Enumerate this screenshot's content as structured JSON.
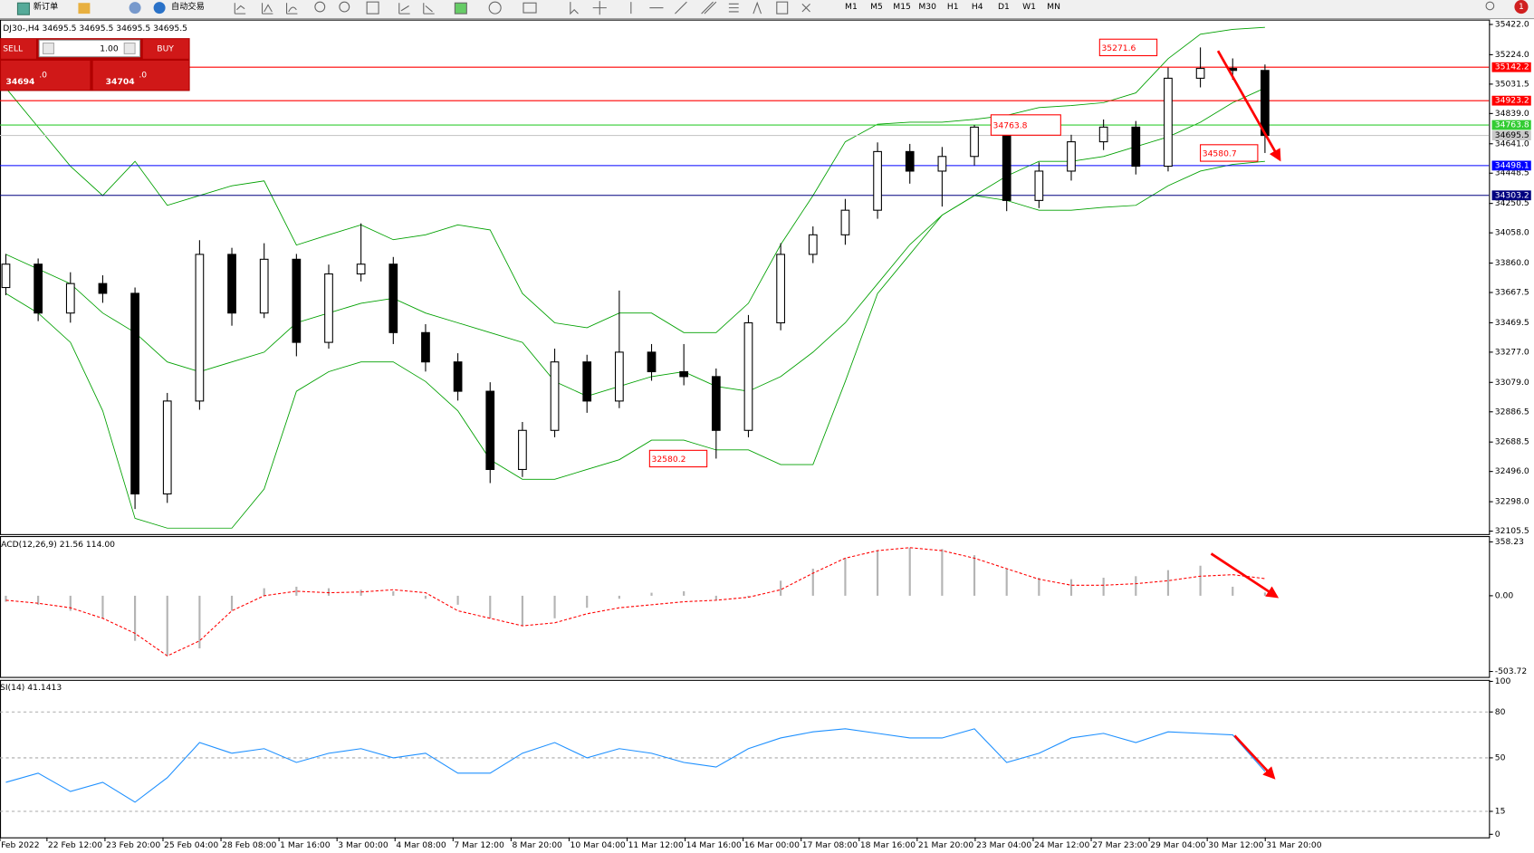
{
  "toolbar": {
    "new_order": "新订单",
    "auto_trading": "自动交易",
    "timeframes": [
      "M1",
      "M5",
      "M15",
      "M30",
      "H1",
      "H4",
      "D1",
      "W1",
      "MN"
    ],
    "badge": "1"
  },
  "trade_panel": {
    "sell": "SELL",
    "buy": "BUY",
    "volume": "1.00",
    "sell_price": "34694",
    "sell_pips": ".0",
    "buy_price": "34704",
    "buy_pips": ".0"
  },
  "chart_data": [
    {
      "type": "candlestick",
      "title": "DJ30-,H4  34695.5 34695.5 34695.5 34695.5",
      "open": [
        33700,
        33853,
        33533,
        33726,
        33662,
        32349,
        32957,
        33917,
        33533,
        33885,
        33341,
        33789,
        33853,
        33405,
        33213,
        33021,
        32509,
        32765,
        33213,
        32957,
        33277,
        33149,
        33117,
        32765,
        33469,
        33917,
        34045,
        34206,
        34590,
        34462,
        34558,
        34750,
        34270,
        34462,
        34654,
        34750,
        34494,
        35070,
        35134,
        35121
      ],
      "high": [
        33920,
        33890,
        33800,
        33780,
        33700,
        33010,
        34010,
        33960,
        33990,
        33920,
        33850,
        34120,
        33900,
        33460,
        33270,
        33080,
        32820,
        33300,
        33260,
        33680,
        33330,
        33330,
        33170,
        33520,
        33990,
        34100,
        34280,
        34650,
        34640,
        34620,
        34763.8,
        34800,
        34520,
        34700,
        34800,
        34790,
        35140,
        35271.6,
        35200,
        35160
      ],
      "low": [
        33650,
        33480,
        33470,
        33600,
        32250,
        32290,
        32900,
        33450,
        33500,
        33250,
        33300,
        33740,
        33330,
        33150,
        32960,
        32420,
        32460,
        32720,
        32880,
        32910,
        33090,
        33060,
        32580.2,
        32720,
        33420,
        33860,
        33980,
        34150,
        34380,
        34230,
        34500,
        34200,
        34220,
        34400,
        34600,
        34440,
        34460,
        35010,
        35060,
        34580.7
      ],
      "close": [
        33853,
        33533,
        33726,
        33662,
        32349,
        32957,
        33917,
        33533,
        33885,
        33341,
        33789,
        33853,
        33405,
        33213,
        33021,
        32509,
        32765,
        33213,
        32957,
        33277,
        33149,
        33117,
        32765,
        33469,
        33917,
        34045,
        34206,
        34590,
        34462,
        34558,
        34750,
        34270,
        34462,
        34654,
        34750,
        34494,
        35070,
        35134,
        35121,
        34695.5
      ],
      "bands": {
        "color": "#00a000",
        "upper": [
          35006,
          34750,
          34494,
          34302,
          34526,
          34238,
          34302,
          34366,
          34398,
          33978,
          34045,
          34110,
          34013,
          34045,
          34110,
          34077,
          33661,
          33469,
          33437,
          33533,
          33533,
          33405,
          33405,
          33597,
          33981,
          34302,
          34654,
          34769,
          34782,
          34782,
          34801,
          34827,
          34878,
          34891,
          34910,
          34974,
          35198,
          35358,
          35390,
          35403
        ],
        "middle": [
          33917,
          33821,
          33725,
          33533,
          33405,
          33213,
          33149,
          33213,
          33277,
          33469,
          33533,
          33597,
          33629,
          33533,
          33469,
          33405,
          33341,
          33085,
          32989,
          33053,
          33117,
          33149,
          33053,
          33021,
          33117,
          33277,
          33469,
          33725,
          33981,
          34174,
          34302,
          34430,
          34526,
          34526,
          34558,
          34622,
          34686,
          34782,
          34910,
          35006
        ],
        "lower": [
          33661,
          33533,
          33341,
          32893,
          32189,
          32125,
          32125,
          32125,
          32381,
          33021,
          33149,
          33213,
          33213,
          33085,
          32893,
          32573,
          32445,
          32445,
          32509,
          32573,
          32701,
          32701,
          32637,
          32637,
          32541,
          32541,
          33085,
          33661,
          33917,
          34174,
          34302,
          34270,
          34206,
          34206,
          34225,
          34238,
          34366,
          34462,
          34506,
          34526
        ]
      },
      "levels": [
        {
          "value": 35142.2,
          "color": "#ff0000"
        },
        {
          "value": 34923.2,
          "color": "#ff0000"
        },
        {
          "value": 34763.8,
          "color": "#33cc33"
        },
        {
          "value": 34695.5,
          "color": "#c8c8c8"
        },
        {
          "value": 34498.1,
          "color": "#0000ff"
        },
        {
          "value": 34303.2,
          "color": "#000080"
        }
      ],
      "annotations": [
        35271.6,
        34763.8,
        34580.7,
        32580.2
      ],
      "ylim": [
        32086,
        35454
      ],
      "yticks": [
        {
          "value": 35422,
          "label": "35422.0"
        },
        {
          "value": 35224,
          "label": "35224.0"
        },
        35031.5,
        {
          "value": 34839,
          "label": "34839.0"
        },
        {
          "value": 34641,
          "label": "34641.0"
        },
        34448.5,
        34250.5,
        {
          "value": 34058,
          "label": "34058.0"
        },
        {
          "value": 33860,
          "label": "33860.0"
        },
        33667.5,
        33469.5,
        {
          "value": 33277,
          "label": "33277.0"
        },
        {
          "value": 33079,
          "label": "33079.0"
        },
        32886.5,
        32688.5,
        {
          "value": 32496,
          "label": "32496.0"
        },
        {
          "value": 32298,
          "label": "32298.0"
        },
        32105.5
      ],
      "x_tick_labels": [
        "Feb 2022",
        "22 Feb 12:00",
        "23 Feb 20:00",
        "25 Feb 04:00",
        "28 Feb 08:00",
        "1 Mar 16:00",
        "3 Mar 00:00",
        "4 Mar 08:00",
        "7 Mar 12:00",
        "8 Mar 20:00",
        "10 Mar 04:00",
        "11 Mar 12:00",
        "14 Mar 16:00",
        "16 Mar 00:00",
        "17 Mar 08:00",
        "18 Mar 16:00",
        "21 Mar 20:00",
        "23 Mar 04:00",
        "24 Mar 12:00",
        "27 Mar 23:00",
        "29 Mar 04:00",
        "30 Mar 12:00",
        "31 Mar 20:00"
      ]
    },
    {
      "type": "macd",
      "title": "ACD(12,26,9) 21.56 114.00",
      "histogram": [
        -40,
        -60,
        -100,
        -150,
        -300,
        -400,
        -350,
        -100,
        50,
        60,
        50,
        40,
        30,
        -20,
        -60,
        -150,
        -200,
        -150,
        -80,
        -20,
        20,
        30,
        -30,
        -10,
        100,
        180,
        250,
        300,
        320,
        310,
        270,
        180,
        120,
        110,
        120,
        130,
        170,
        200,
        60,
        21.56
      ],
      "signal": [
        -30,
        -50,
        -80,
        -150,
        -250,
        -400,
        -300,
        -100,
        0,
        30,
        20,
        25,
        40,
        20,
        -100,
        -150,
        -200,
        -180,
        -120,
        -80,
        -60,
        -40,
        -30,
        -10,
        40,
        150,
        250,
        300,
        320,
        300,
        250,
        180,
        110,
        70,
        70,
        80,
        100,
        130,
        140,
        114
      ],
      "histogram_color": "#b4b4b4",
      "signal_color": "#ff0000",
      "ylim": [
        -540,
        397
      ],
      "yticks": [
        358.23,
        {
          "value": 0,
          "label": "0.00"
        },
        -503.72
      ]
    },
    {
      "type": "line",
      "title": "SI(14) 41.1413",
      "values": [
        34,
        40,
        28,
        34,
        21,
        37,
        60,
        53,
        56,
        47,
        53,
        56,
        50,
        53,
        40,
        40,
        53,
        60,
        50,
        56,
        53,
        47,
        44,
        56,
        63,
        67,
        69,
        66,
        63,
        63,
        69,
        47,
        53,
        63,
        66,
        60,
        67,
        66,
        65,
        41.1413
      ],
      "color": "#1e90ff",
      "levels": [
        80,
        50,
        15
      ],
      "ylim": [
        -2,
        101
      ],
      "yticks": [
        100,
        80,
        50,
        15,
        0
      ]
    }
  ]
}
